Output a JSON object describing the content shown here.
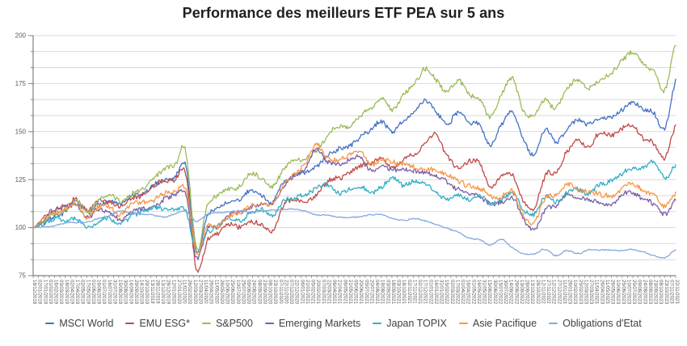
{
  "title": "Performance des meilleurs ETF PEA sur 5 ans",
  "chart_data": {
    "type": "line",
    "title": "Performance des meilleurs ETF PEA sur 5 ans",
    "grid": true,
    "legend_position": "bottom",
    "y_axis": {
      "min": 75,
      "max": 200,
      "major_unit": 25,
      "minor_gridline_divisions": 15,
      "tick_labels": [
        "75",
        "100",
        "125",
        "150",
        "175",
        "200"
      ]
    },
    "x_tick_labels": [
      "18/12/2018",
      "02/01/2019",
      "17/01/2019",
      "01/02/2019",
      "16/02/2019",
      "03/03/2019",
      "18/03/2019",
      "02/04/2019",
      "17/04/2019",
      "02/05/2019",
      "17/05/2019",
      "01/06/2019",
      "16/06/2019",
      "01/07/2019",
      "16/07/2019",
      "31/07/2019",
      "15/08/2019",
      "30/08/2019",
      "14/09/2019",
      "29/09/2019",
      "14/10/2019",
      "29/10/2019",
      "13/11/2019",
      "28/11/2019",
      "13/12/2019",
      "28/12/2019",
      "12/01/2020",
      "27/01/2020",
      "11/02/2020",
      "26/02/2020",
      "12/03/2020",
      "27/03/2020",
      "11/04/2020",
      "26/04/2020",
      "11/05/2020",
      "26/05/2020",
      "10/06/2020",
      "25/06/2020",
      "10/07/2020",
      "25/07/2020",
      "09/08/2020",
      "24/08/2020",
      "08/09/2020",
      "23/09/2020",
      "08/10/2020",
      "23/10/2020",
      "07/11/2020",
      "22/11/2020",
      "07/12/2020",
      "22/12/2020",
      "06/01/2021",
      "21/01/2021",
      "05/02/2021",
      "20/02/2021",
      "07/03/2021",
      "22/03/2021",
      "06/04/2021",
      "21/04/2021",
      "06/05/2021",
      "21/05/2021",
      "05/06/2021",
      "20/06/2021",
      "05/07/2021",
      "20/07/2021",
      "04/08/2021",
      "19/08/2021",
      "03/09/2021",
      "18/09/2021",
      "03/10/2021",
      "18/10/2021",
      "02/11/2021",
      "17/11/2021",
      "02/12/2021",
      "17/12/2021",
      "01/01/2022",
      "16/01/2022",
      "31/01/2022",
      "15/02/2022",
      "02/03/2022",
      "17/03/2022",
      "01/04/2022",
      "16/04/2022",
      "01/05/2022",
      "16/05/2022",
      "31/05/2022",
      "15/06/2022",
      "30/06/2022",
      "15/07/2022",
      "30/07/2022",
      "14/08/2022",
      "29/08/2022",
      "13/09/2022",
      "28/09/2022",
      "13/10/2022",
      "28/10/2022",
      "12/11/2022",
      "27/11/2022",
      "12/12/2022",
      "27/12/2022",
      "11/01/2023",
      "26/01/2023",
      "10/02/2023",
      "25/02/2023",
      "12/03/2023",
      "27/03/2023",
      "11/04/2023",
      "26/04/2023",
      "11/05/2023",
      "26/05/2023",
      "10/06/2023",
      "25/06/2023",
      "10/07/2023",
      "25/07/2023",
      "09/08/2023",
      "24/08/2023",
      "08/09/2023",
      "23/09/2023",
      "08/10/2023",
      "23/10/2023",
      "07/11/2023",
      "22/11/2023"
    ],
    "sample_dates": [
      "18/12/2018",
      "18/01/2019",
      "18/02/2019",
      "18/03/2019",
      "18/04/2019",
      "18/05/2019",
      "18/06/2019",
      "18/07/2019",
      "18/08/2019",
      "18/09/2019",
      "18/10/2019",
      "18/11/2019",
      "18/12/2019",
      "18/01/2020",
      "18/02/2020",
      "18/03/2020",
      "18/04/2020",
      "18/05/2020",
      "18/06/2020",
      "18/07/2020",
      "18/08/2020",
      "18/09/2020",
      "18/10/2020",
      "18/11/2020",
      "18/12/2020",
      "18/01/2021",
      "18/02/2021",
      "18/03/2021",
      "18/04/2021",
      "18/05/2021",
      "18/06/2021",
      "18/07/2021",
      "18/08/2021",
      "18/09/2021",
      "18/10/2021",
      "18/11/2021",
      "18/12/2021",
      "18/01/2022",
      "18/02/2022",
      "18/03/2022",
      "18/04/2022",
      "18/05/2022",
      "18/06/2022",
      "18/07/2022",
      "18/08/2022",
      "18/09/2022",
      "18/10/2022",
      "18/11/2022",
      "18/12/2022",
      "18/01/2023",
      "18/02/2023",
      "18/03/2023",
      "18/04/2023",
      "18/05/2023",
      "18/06/2023",
      "18/07/2023",
      "18/08/2023",
      "18/09/2023",
      "18/10/2023",
      "18/11/2023"
    ],
    "series": [
      {
        "name": "MSCI World",
        "color": "#4472C4",
        "values": [
          100,
          103,
          107,
          109,
          113,
          107,
          112,
          114,
          112,
          116,
          117,
          121,
          124,
          126,
          132,
          87,
          106,
          110,
          113,
          114,
          119,
          117,
          114,
          124,
          127,
          128,
          131,
          138,
          141,
          142,
          147,
          151,
          155,
          150,
          156,
          160,
          166,
          161,
          155,
          161,
          155,
          153,
          143,
          153,
          160,
          146,
          137,
          150,
          145,
          152,
          156,
          153,
          157,
          158,
          162,
          166,
          162,
          160,
          152,
          176
        ]
      },
      {
        "name": "EMU ESG*",
        "color": "#BE4B48",
        "values": [
          100,
          104,
          108,
          110,
          114,
          109,
          114,
          114,
          111,
          115,
          117,
          121,
          124,
          125,
          128,
          78,
          94,
          97,
          102,
          100,
          103,
          101,
          98,
          112,
          114,
          113,
          117,
          124,
          126,
          128,
          132,
          133,
          136,
          131,
          135,
          138,
          143,
          148,
          138,
          133,
          136,
          134,
          122,
          128,
          128,
          114,
          110,
          126,
          128,
          139,
          146,
          142,
          150,
          148,
          151,
          153,
          146,
          144,
          136,
          153
        ]
      },
      {
        "name": "S&P500",
        "color": "#9BBB59",
        "values": [
          100,
          104,
          108,
          111,
          115,
          108,
          114,
          117,
          114,
          118,
          120,
          126,
          130,
          132,
          140,
          89,
          112,
          117,
          120,
          122,
          128,
          125,
          122,
          131,
          134,
          135,
          139,
          147,
          152,
          152,
          158,
          163,
          168,
          162,
          170,
          175,
          183,
          177,
          171,
          178,
          170,
          168,
          158,
          170,
          178,
          162,
          160,
          168,
          163,
          172,
          176,
          172,
          176,
          180,
          186,
          190,
          184,
          180,
          172,
          195
        ]
      },
      {
        "name": "Emerging Markets",
        "color": "#7B5EA7",
        "values": [
          100,
          105,
          109,
          110,
          112,
          105,
          110,
          109,
          105,
          109,
          111,
          112,
          117,
          118,
          118,
          84,
          100,
          101,
          106,
          108,
          111,
          112,
          112,
          120,
          126,
          131,
          140,
          134,
          133,
          135,
          137,
          130,
          133,
          131,
          130,
          129,
          128,
          126,
          124,
          121,
          119,
          117,
          113,
          113,
          115,
          104,
          99,
          110,
          112,
          118,
          115,
          114,
          113,
          112,
          116,
          119,
          115,
          113,
          108,
          116
        ]
      },
      {
        "name": "Japan TOPIX",
        "color": "#31AEC4",
        "values": [
          100,
          102,
          105,
          104,
          106,
          101,
          104,
          105,
          102,
          106,
          108,
          110,
          111,
          110,
          110,
          88,
          98,
          101,
          105,
          102,
          106,
          108,
          105,
          112,
          114,
          116,
          119,
          122,
          118,
          119,
          121,
          118,
          121,
          126,
          122,
          124,
          123,
          120,
          116,
          118,
          115,
          117,
          112,
          115,
          118,
          109,
          106,
          115,
          112,
          117,
          119,
          117,
          121,
          124,
          129,
          131,
          131,
          134,
          126,
          132
        ]
      },
      {
        "name": "Asie Pacifique",
        "color": "#F79646",
        "values": [
          100,
          105,
          109,
          111,
          113,
          106,
          111,
          111,
          107,
          111,
          113,
          114,
          118,
          119,
          120,
          86,
          101,
          102,
          107,
          109,
          112,
          113,
          113,
          122,
          128,
          133,
          143,
          137,
          136,
          138,
          140,
          133,
          136,
          134,
          133,
          131,
          130,
          129,
          127,
          124,
          122,
          120,
          116,
          116,
          119,
          107,
          103,
          114,
          116,
          122,
          119,
          118,
          117,
          116,
          120,
          123,
          119,
          117,
          112,
          118
        ]
      },
      {
        "name": "Obligations d'Etat",
        "color": "#83A9DC",
        "values": [
          100,
          100.5,
          101,
          102.5,
          102.5,
          103,
          105,
          106,
          108.5,
          107.5,
          107,
          106.5,
          105.5,
          107,
          108.5,
          103,
          107,
          107.5,
          108,
          108.5,
          108,
          108.5,
          109,
          109,
          109.5,
          108.5,
          106.5,
          106.5,
          105.5,
          105.5,
          106,
          107,
          107,
          105,
          104,
          105,
          103.5,
          101.5,
          99.5,
          97.5,
          94.5,
          93.5,
          91,
          94,
          89.5,
          86.5,
          86,
          88.5,
          85.5,
          88,
          86.5,
          88.5,
          88.5,
          88.5,
          88,
          88.5,
          87.5,
          85.5,
          84.5,
          88.5
        ]
      }
    ],
    "colors": {
      "gridline": "#D9D9D9",
      "axis": "#7F7F7F",
      "tick_label": "#595959",
      "legend_text": "#404040",
      "title_text": "#1F1F1F"
    }
  }
}
